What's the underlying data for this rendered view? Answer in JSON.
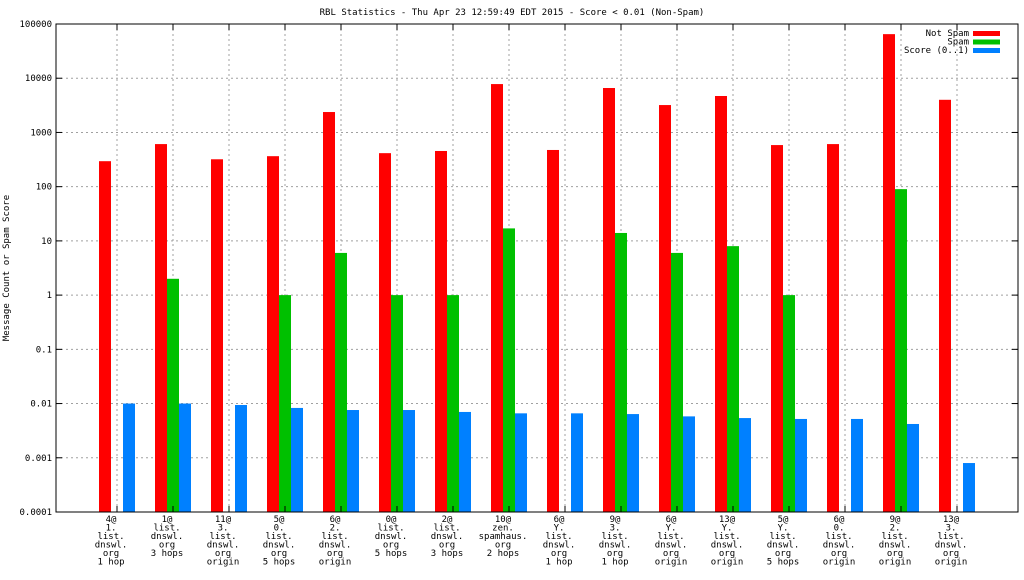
{
  "chart_data": {
    "type": "bar",
    "title": "RBL Statistics - Thu Apr 23 12:59:49 EDT 2015 - Score < 0.01 (Non-Spam)",
    "xlabel": "",
    "ylabel": "Message Count or Spam Score",
    "yscale": "log",
    "ylim": [
      0.0001,
      100000
    ],
    "yticks": [
      "0.0001",
      "0.001",
      "0.01",
      "0.1",
      "1",
      "10",
      "100",
      "1000",
      "10000",
      "100000"
    ],
    "grid": true,
    "legend_position": "top-right",
    "categories": [
      [
        "4@",
        "1.",
        "list.",
        "dnswl.",
        "org",
        "1 hop"
      ],
      [
        "1@",
        "list.",
        "dnswl.",
        "org",
        "3 hops"
      ],
      [
        "11@",
        "3.",
        "list.",
        "dnswl.",
        "org",
        "origin"
      ],
      [
        "5@",
        "0.",
        "list.",
        "dnswl.",
        "org",
        "5 hops"
      ],
      [
        "6@",
        "2.",
        "list.",
        "dnswl.",
        "org",
        "origin"
      ],
      [
        "0@",
        "list.",
        "dnswl.",
        "org",
        "5 hops"
      ],
      [
        "2@",
        "list.",
        "dnswl.",
        "org",
        "3 hops"
      ],
      [
        "10@",
        "zen.",
        "spamhaus.",
        "org",
        "2 hops"
      ],
      [
        "6@",
        "Y.",
        "list.",
        "dnswl.",
        "org",
        "1 hop"
      ],
      [
        "9@",
        "3.",
        "list.",
        "dnswl.",
        "org",
        "1 hop"
      ],
      [
        "6@",
        "Y.",
        "list.",
        "dnswl.",
        "org",
        "origin"
      ],
      [
        "13@",
        "Y.",
        "list.",
        "dnswl.",
        "org",
        "origin"
      ],
      [
        "5@",
        "Y.",
        "list.",
        "dnswl.",
        "org",
        "5 hops"
      ],
      [
        "6@",
        "0.",
        "list.",
        "dnswl.",
        "org",
        "origin"
      ],
      [
        "9@",
        "2.",
        "list.",
        "dnswl.",
        "org",
        "origin"
      ],
      [
        "13@",
        "3.",
        "list.",
        "dnswl.",
        "org",
        "origin"
      ]
    ],
    "series": [
      {
        "name": "Not Spam",
        "color": "#ff0000",
        "values": [
          295,
          610,
          320,
          365,
          2380,
          415,
          455,
          7800,
          475,
          6600,
          3200,
          4700,
          585,
          610,
          65000,
          4000
        ]
      },
      {
        "name": "Spam",
        "color": "#00c000",
        "values": [
          0,
          2,
          0,
          1,
          6,
          1,
          1,
          17,
          0,
          14,
          6,
          8,
          1,
          0,
          90,
          0
        ]
      },
      {
        "name": "Score (0..1)",
        "color": "#0080ff",
        "values": [
          0.01,
          0.01,
          0.0094,
          0.0083,
          0.0076,
          0.0076,
          0.007,
          0.0066,
          0.0066,
          0.0064,
          0.0058,
          0.0054,
          0.0052,
          0.0052,
          0.0042,
          0.0008
        ]
      }
    ]
  }
}
